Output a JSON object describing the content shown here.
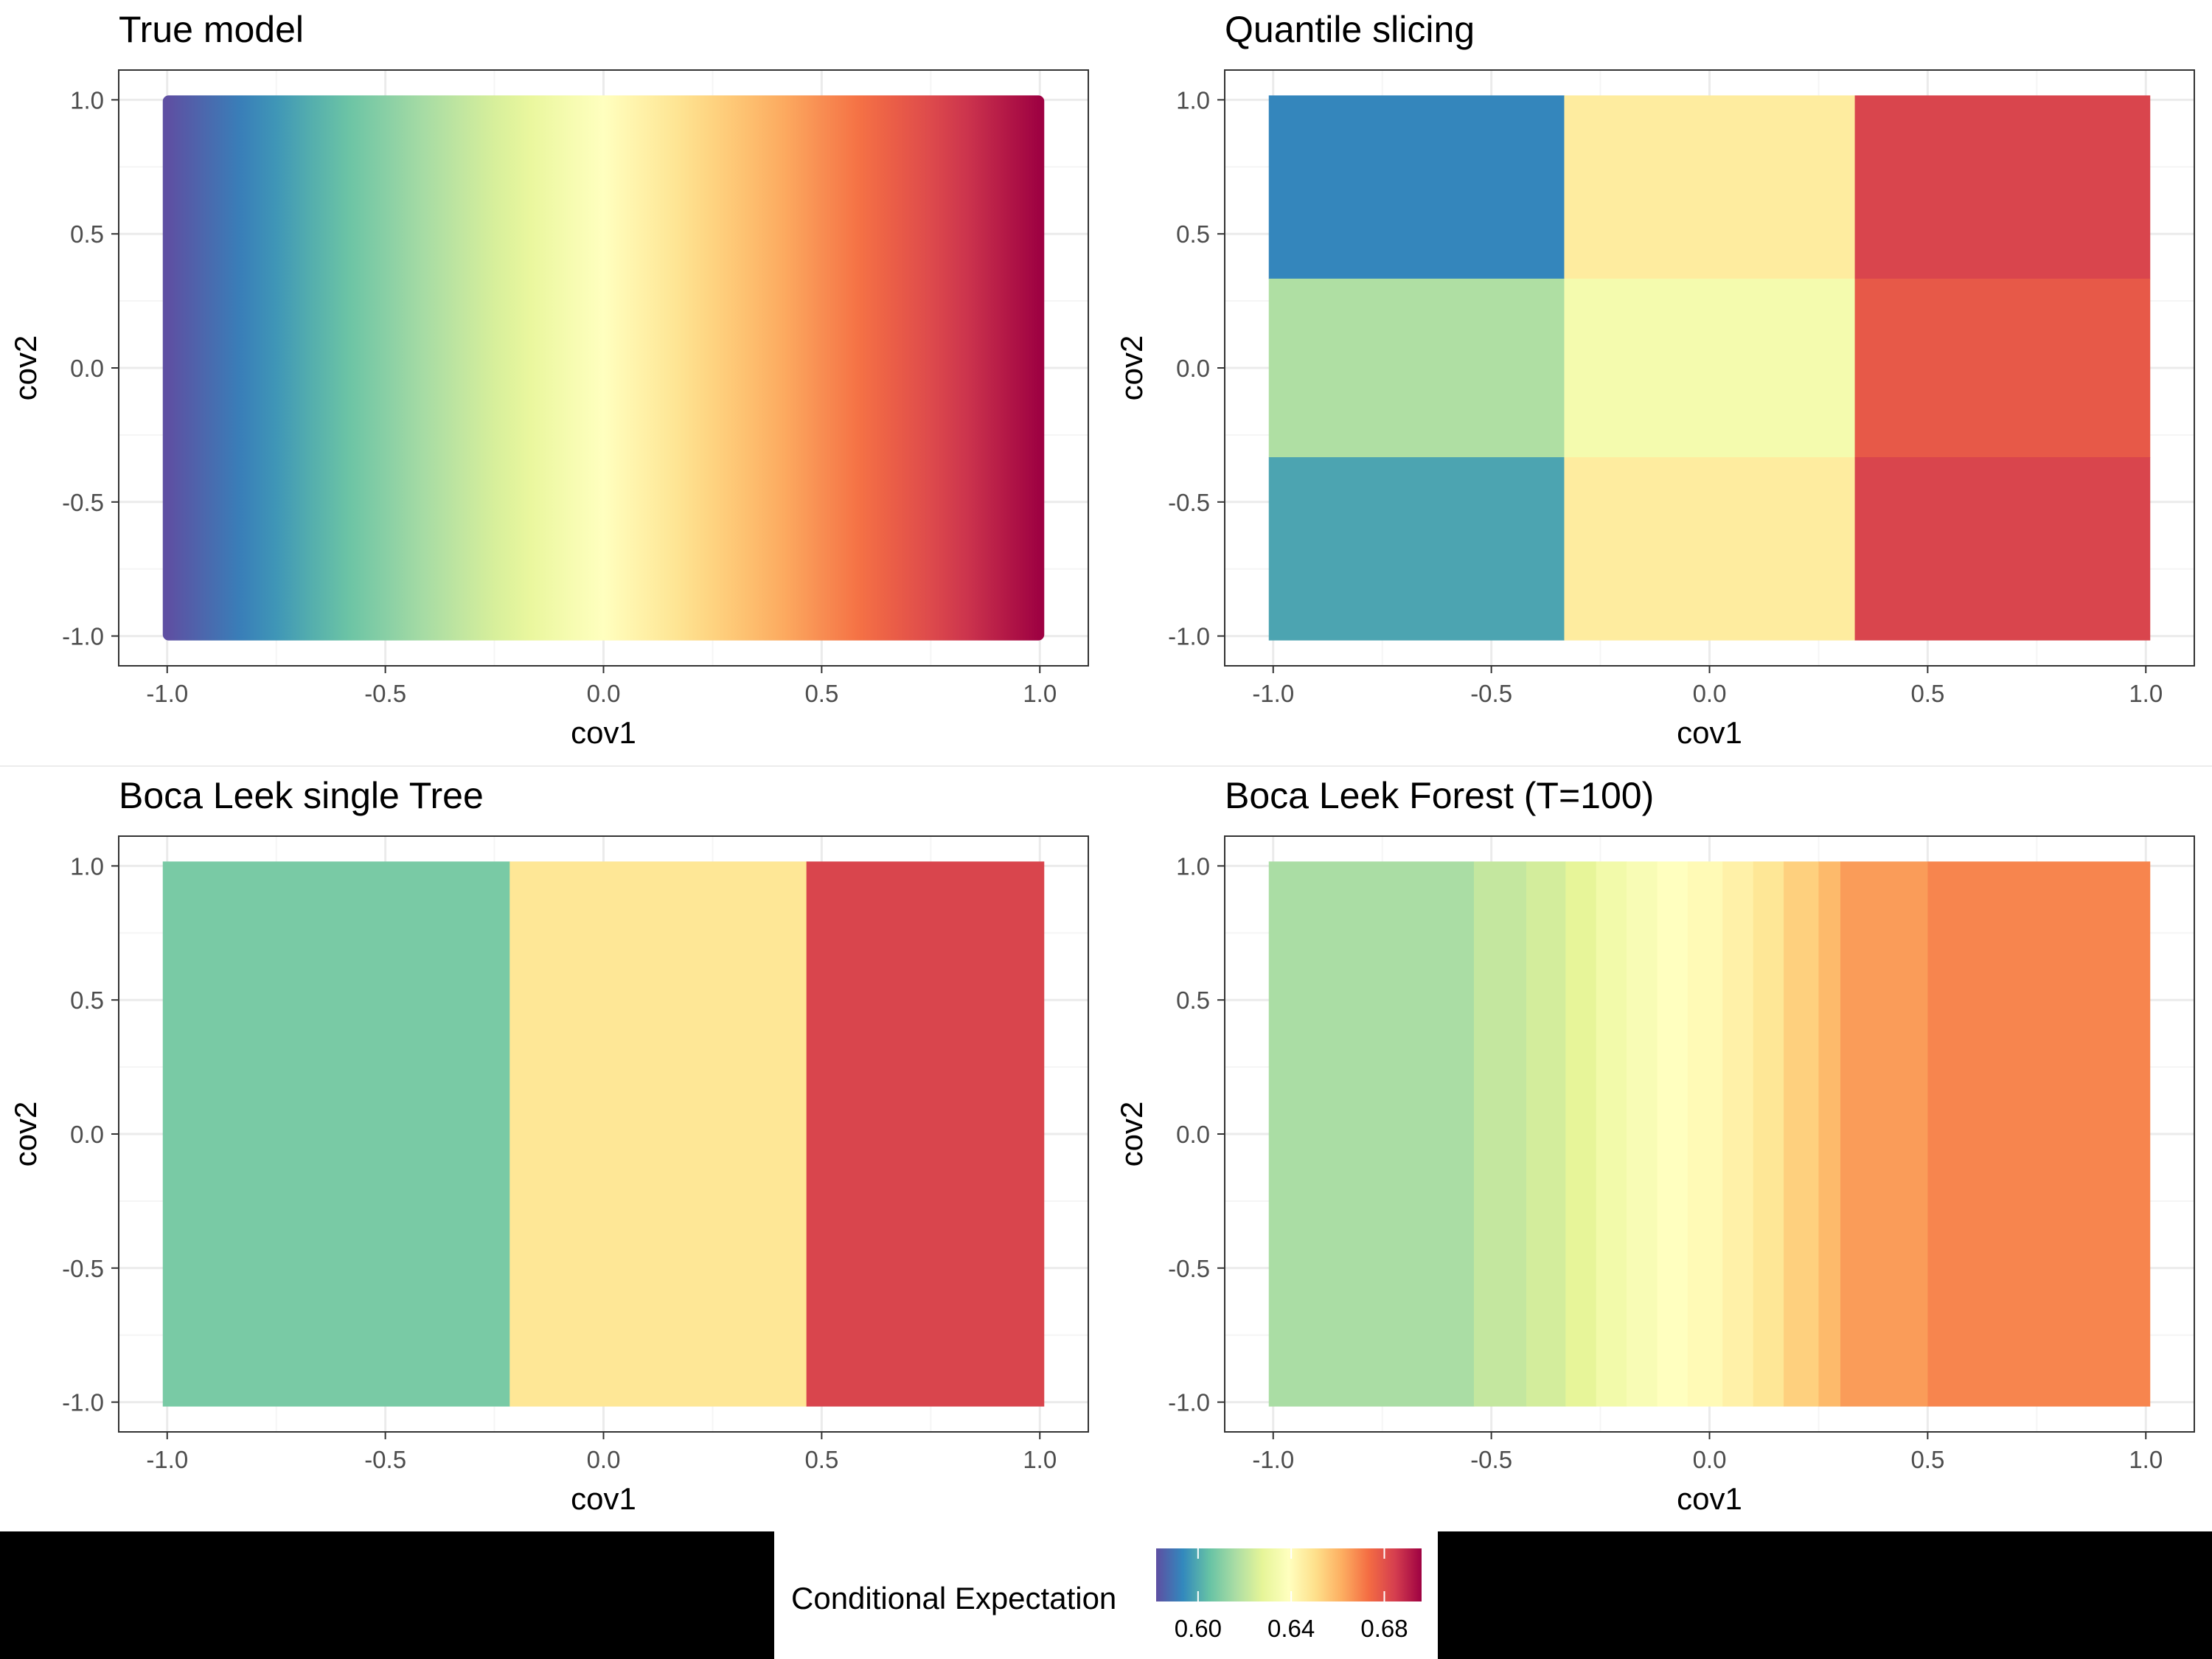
{
  "palette": [
    "#5e4fa2",
    "#3288bd",
    "#66c2a5",
    "#abdda4",
    "#e6f598",
    "#ffffbf",
    "#fee08b",
    "#fdae61",
    "#f46d43",
    "#d53e4f",
    "#9e0142"
  ],
  "colors": {
    "panel_border": "#333333",
    "grid_major": "#ebebeb",
    "grid_minor": "#f5f5f5",
    "axis_text": "#4d4d4d",
    "title_text": "#000000",
    "mask": "#000000"
  },
  "legend": {
    "title": "Conditional Expectation",
    "range": [
      0.582,
      0.696
    ],
    "breaks": [
      0.6,
      0.64,
      0.68
    ],
    "break_labels": [
      "0.60",
      "0.64",
      "0.68"
    ]
  },
  "chart_data": [
    {
      "type": "heatmap",
      "title": "True model",
      "xlabel": "cov1",
      "ylabel": "cov2",
      "xlim": [
        -1.0,
        1.0
      ],
      "ylim": [
        -1.0,
        1.0
      ],
      "xticks": [
        -1.0,
        -0.5,
        0.0,
        0.5,
        1.0
      ],
      "xtick_labels": [
        "-1.0",
        "-0.5",
        "0.0",
        "0.5",
        "1.0"
      ],
      "yticks": [
        -1.0,
        -0.5,
        0.0,
        0.5,
        1.0
      ],
      "ytick_labels": [
        "-1.0",
        "-0.5",
        "0.0",
        "0.5",
        "1.0"
      ],
      "grid": true,
      "mode": "gradient",
      "gradient_x": [
        -1.0,
        1.0
      ],
      "gradient_values": [
        0.582,
        0.696
      ]
    },
    {
      "type": "heatmap",
      "title": "Quantile slicing",
      "xlabel": "cov1",
      "ylabel": "cov2",
      "xlim": [
        -1.0,
        1.0
      ],
      "ylim": [
        -1.0,
        1.0
      ],
      "xticks": [
        -1.0,
        -0.5,
        0.0,
        0.5,
        1.0
      ],
      "xtick_labels": [
        "-1.0",
        "-0.5",
        "0.0",
        "0.5",
        "1.0"
      ],
      "yticks": [
        -1.0,
        -0.5,
        0.0,
        0.5,
        1.0
      ],
      "ytick_labels": [
        "-1.0",
        "-0.5",
        "0.0",
        "0.5",
        "1.0"
      ],
      "grid": true,
      "mode": "blocks",
      "cells": [
        {
          "x": [
            -1.0,
            -0.333
          ],
          "y": [
            0.333,
            1.0
          ],
          "value": 0.593
        },
        {
          "x": [
            -1.0,
            -0.333
          ],
          "y": [
            -0.333,
            0.333
          ],
          "value": 0.617
        },
        {
          "x": [
            -1.0,
            -0.333
          ],
          "y": [
            -1.0,
            -0.333
          ],
          "value": 0.599
        },
        {
          "x": [
            -0.333,
            0.333
          ],
          "y": [
            0.333,
            1.0
          ],
          "value": 0.646
        },
        {
          "x": [
            -0.333,
            0.333
          ],
          "y": [
            -0.333,
            0.333
          ],
          "value": 0.634
        },
        {
          "x": [
            -0.333,
            0.333
          ],
          "y": [
            -1.0,
            -0.333
          ],
          "value": 0.646
        },
        {
          "x": [
            0.333,
            1.0
          ],
          "y": [
            0.333,
            1.0
          ],
          "value": 0.683
        },
        {
          "x": [
            0.333,
            1.0
          ],
          "y": [
            -0.333,
            0.333
          ],
          "value": 0.678
        },
        {
          "x": [
            0.333,
            1.0
          ],
          "y": [
            -1.0,
            -0.333
          ],
          "value": 0.683
        }
      ]
    },
    {
      "type": "heatmap",
      "title": "Boca Leek single Tree",
      "xlabel": "cov1",
      "ylabel": "cov2",
      "xlim": [
        -1.0,
        1.0
      ],
      "ylim": [
        -1.0,
        1.0
      ],
      "xticks": [
        -1.0,
        -0.5,
        0.0,
        0.5,
        1.0
      ],
      "xtick_labels": [
        "-1.0",
        "-0.5",
        "0.0",
        "0.5",
        "1.0"
      ],
      "yticks": [
        -1.0,
        -0.5,
        0.0,
        0.5,
        1.0
      ],
      "ytick_labels": [
        "-1.0",
        "-0.5",
        "0.0",
        "0.5",
        "1.0"
      ],
      "grid": true,
      "mode": "blocks",
      "cells": [
        {
          "x": [
            -1.0,
            -0.215
          ],
          "y": [
            -1.0,
            1.0
          ],
          "value": 0.608
        },
        {
          "x": [
            -0.215,
            0.465
          ],
          "y": [
            -1.0,
            1.0
          ],
          "value": 0.648
        },
        {
          "x": [
            0.465,
            1.0
          ],
          "y": [
            -1.0,
            1.0
          ],
          "value": 0.683
        }
      ]
    },
    {
      "type": "heatmap",
      "title": "Boca Leek Forest (T=100)",
      "xlabel": "cov1",
      "ylabel": "cov2",
      "xlim": [
        -1.0,
        1.0
      ],
      "ylim": [
        -1.0,
        1.0
      ],
      "xticks": [
        -1.0,
        -0.5,
        0.0,
        0.5,
        1.0
      ],
      "xtick_labels": [
        "-1.0",
        "-0.5",
        "0.0",
        "0.5",
        "1.0"
      ],
      "yticks": [
        -1.0,
        -0.5,
        0.0,
        0.5,
        1.0
      ],
      "ytick_labels": [
        "-1.0",
        "-0.5",
        "0.0",
        "0.5",
        "1.0"
      ],
      "grid": true,
      "mode": "steps",
      "steps": [
        {
          "x": [
            -1.0,
            -0.54
          ],
          "value": 0.616
        },
        {
          "x": [
            -0.54,
            -0.42
          ],
          "value": 0.621
        },
        {
          "x": [
            -0.42,
            -0.33
          ],
          "value": 0.624
        },
        {
          "x": [
            -0.33,
            -0.26
          ],
          "value": 0.628
        },
        {
          "x": [
            -0.26,
            -0.19
          ],
          "value": 0.633
        },
        {
          "x": [
            -0.19,
            -0.12
          ],
          "value": 0.636
        },
        {
          "x": [
            -0.12,
            -0.05
          ],
          "value": 0.639
        },
        {
          "x": [
            -0.05,
            0.03
          ],
          "value": 0.641
        },
        {
          "x": [
            0.03,
            0.1
          ],
          "value": 0.644
        },
        {
          "x": [
            0.1,
            0.17
          ],
          "value": 0.648
        },
        {
          "x": [
            0.17,
            0.25
          ],
          "value": 0.654
        },
        {
          "x": [
            0.25,
            0.3
          ],
          "value": 0.659
        },
        {
          "x": [
            0.3,
            0.5
          ],
          "value": 0.665
        },
        {
          "x": [
            0.5,
            1.0
          ],
          "value": 0.669
        }
      ]
    }
  ]
}
